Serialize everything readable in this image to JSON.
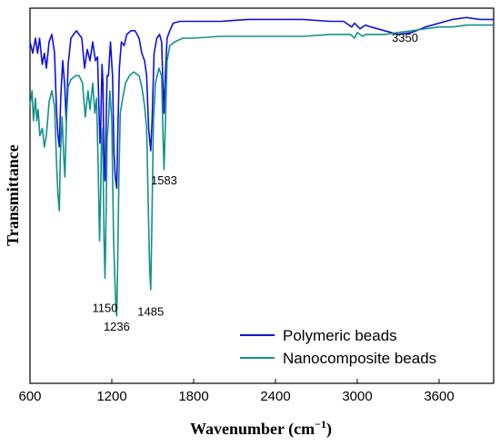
{
  "chart_data": {
    "type": "line",
    "xlabel": "Wavenumber (cm",
    "xlabel_sup": "−1",
    "xlabel_end": ")",
    "ylabel": "Transmittance",
    "xlim": [
      600,
      4000
    ],
    "ylim": [
      0,
      100
    ],
    "xticks": [
      600,
      1200,
      1800,
      2400,
      3000,
      3600
    ],
    "grid": false,
    "legend_position": "bottom-right",
    "annotations": [
      {
        "text": "3350",
        "x": 3350,
        "y": 91
      },
      {
        "text": "1583",
        "x": 1583,
        "y": 53
      },
      {
        "text": "1150",
        "x": 1150,
        "y": 19
      },
      {
        "text": "1236",
        "x": 1236,
        "y": 14
      },
      {
        "text": "1485",
        "x": 1485,
        "y": 18
      }
    ],
    "series": [
      {
        "name": "Polymeric beads",
        "color": "#1010e0",
        "points": [
          [
            600,
            91
          ],
          [
            620,
            88
          ],
          [
            640,
            92
          ],
          [
            655,
            88
          ],
          [
            670,
            92
          ],
          [
            690,
            85
          ],
          [
            705,
            88
          ],
          [
            720,
            84
          ],
          [
            740,
            91
          ],
          [
            760,
            93
          ],
          [
            780,
            88
          ],
          [
            795,
            72
          ],
          [
            805,
            66
          ],
          [
            815,
            63
          ],
          [
            825,
            76
          ],
          [
            840,
            86
          ],
          [
            855,
            79
          ],
          [
            865,
            70
          ],
          [
            880,
            85
          ],
          [
            900,
            92
          ],
          [
            940,
            94
          ],
          [
            980,
            92
          ],
          [
            1000,
            84
          ],
          [
            1020,
            89
          ],
          [
            1040,
            86
          ],
          [
            1060,
            91
          ],
          [
            1080,
            86
          ],
          [
            1095,
            87
          ],
          [
            1105,
            74
          ],
          [
            1113,
            64
          ],
          [
            1120,
            70
          ],
          [
            1128,
            85
          ],
          [
            1135,
            80
          ],
          [
            1142,
            60
          ],
          [
            1150,
            54
          ],
          [
            1158,
            69
          ],
          [
            1165,
            82
          ],
          [
            1175,
            82
          ],
          [
            1190,
            91
          ],
          [
            1205,
            82
          ],
          [
            1215,
            62
          ],
          [
            1225,
            55
          ],
          [
            1236,
            52
          ],
          [
            1245,
            69
          ],
          [
            1255,
            84
          ],
          [
            1270,
            91
          ],
          [
            1290,
            90
          ],
          [
            1310,
            93
          ],
          [
            1340,
            94
          ],
          [
            1370,
            94
          ],
          [
            1400,
            92
          ],
          [
            1420,
            88
          ],
          [
            1440,
            86
          ],
          [
            1455,
            82
          ],
          [
            1470,
            68
          ],
          [
            1485,
            62
          ],
          [
            1495,
            70
          ],
          [
            1510,
            88
          ],
          [
            1530,
            92
          ],
          [
            1550,
            93
          ],
          [
            1565,
            91
          ],
          [
            1575,
            79
          ],
          [
            1583,
            72
          ],
          [
            1592,
            82
          ],
          [
            1605,
            92
          ],
          [
            1625,
            94
          ],
          [
            1650,
            96
          ],
          [
            1700,
            96.5
          ],
          [
            1800,
            96.5
          ],
          [
            2000,
            96.5
          ],
          [
            2200,
            97
          ],
          [
            2400,
            97
          ],
          [
            2600,
            97
          ],
          [
            2800,
            96.5
          ],
          [
            2900,
            96.5
          ],
          [
            2960,
            95
          ],
          [
            2980,
            96
          ],
          [
            3020,
            94.5
          ],
          [
            3060,
            95.5
          ],
          [
            3100,
            95
          ],
          [
            3200,
            94
          ],
          [
            3300,
            93
          ],
          [
            3400,
            93.5
          ],
          [
            3500,
            95
          ],
          [
            3600,
            96
          ],
          [
            3700,
            97
          ],
          [
            3800,
            97.5
          ],
          [
            3900,
            97
          ],
          [
            4000,
            97
          ]
        ]
      },
      {
        "name": "Nanocomposite beads",
        "color": "#14908a",
        "points": [
          [
            600,
            74
          ],
          [
            615,
            78
          ],
          [
            625,
            70
          ],
          [
            640,
            76
          ],
          [
            650,
            70
          ],
          [
            660,
            73
          ],
          [
            672,
            66
          ],
          [
            690,
            68
          ],
          [
            705,
            63
          ],
          [
            720,
            66
          ],
          [
            740,
            75
          ],
          [
            760,
            78
          ],
          [
            780,
            74
          ],
          [
            795,
            58
          ],
          [
            805,
            50
          ],
          [
            815,
            46
          ],
          [
            822,
            60
          ],
          [
            835,
            71
          ],
          [
            848,
            60
          ],
          [
            856,
            55
          ],
          [
            868,
            71
          ],
          [
            880,
            79
          ],
          [
            900,
            81
          ],
          [
            935,
            82
          ],
          [
            960,
            82
          ],
          [
            985,
            80
          ],
          [
            1005,
            71
          ],
          [
            1025,
            78
          ],
          [
            1040,
            73
          ],
          [
            1060,
            80
          ],
          [
            1075,
            72
          ],
          [
            1088,
            76
          ],
          [
            1100,
            58
          ],
          [
            1110,
            38
          ],
          [
            1118,
            50
          ],
          [
            1125,
            68
          ],
          [
            1135,
            60
          ],
          [
            1143,
            38
          ],
          [
            1150,
            28
          ],
          [
            1158,
            44
          ],
          [
            1165,
            65
          ],
          [
            1175,
            70
          ],
          [
            1185,
            78
          ],
          [
            1200,
            70
          ],
          [
            1212,
            40
          ],
          [
            1222,
            28
          ],
          [
            1230,
            20
          ],
          [
            1236,
            18
          ],
          [
            1244,
            34
          ],
          [
            1252,
            55
          ],
          [
            1262,
            72
          ],
          [
            1280,
            76
          ],
          [
            1300,
            80
          ],
          [
            1330,
            82
          ],
          [
            1360,
            83
          ],
          [
            1400,
            82
          ],
          [
            1420,
            79
          ],
          [
            1440,
            74
          ],
          [
            1455,
            68
          ],
          [
            1468,
            46
          ],
          [
            1478,
            30
          ],
          [
            1485,
            25
          ],
          [
            1493,
            40
          ],
          [
            1505,
            70
          ],
          [
            1520,
            80
          ],
          [
            1545,
            84
          ],
          [
            1565,
            82
          ],
          [
            1575,
            66
          ],
          [
            1583,
            57
          ],
          [
            1592,
            68
          ],
          [
            1605,
            86
          ],
          [
            1625,
            90
          ],
          [
            1660,
            91
          ],
          [
            1720,
            92
          ],
          [
            1800,
            92
          ],
          [
            2000,
            92.5
          ],
          [
            2200,
            92.5
          ],
          [
            2400,
            92.5
          ],
          [
            2600,
            92.5
          ],
          [
            2800,
            93
          ],
          [
            2950,
            93
          ],
          [
            2980,
            92
          ],
          [
            3000,
            93.5
          ],
          [
            3040,
            92.5
          ],
          [
            3060,
            93
          ],
          [
            3100,
            93
          ],
          [
            3200,
            93
          ],
          [
            3300,
            93.5
          ],
          [
            3400,
            94
          ],
          [
            3500,
            94.5
          ],
          [
            3600,
            95
          ],
          [
            3700,
            95
          ],
          [
            3800,
            95.5
          ],
          [
            3900,
            95.5
          ],
          [
            4000,
            95.5
          ]
        ]
      }
    ]
  }
}
